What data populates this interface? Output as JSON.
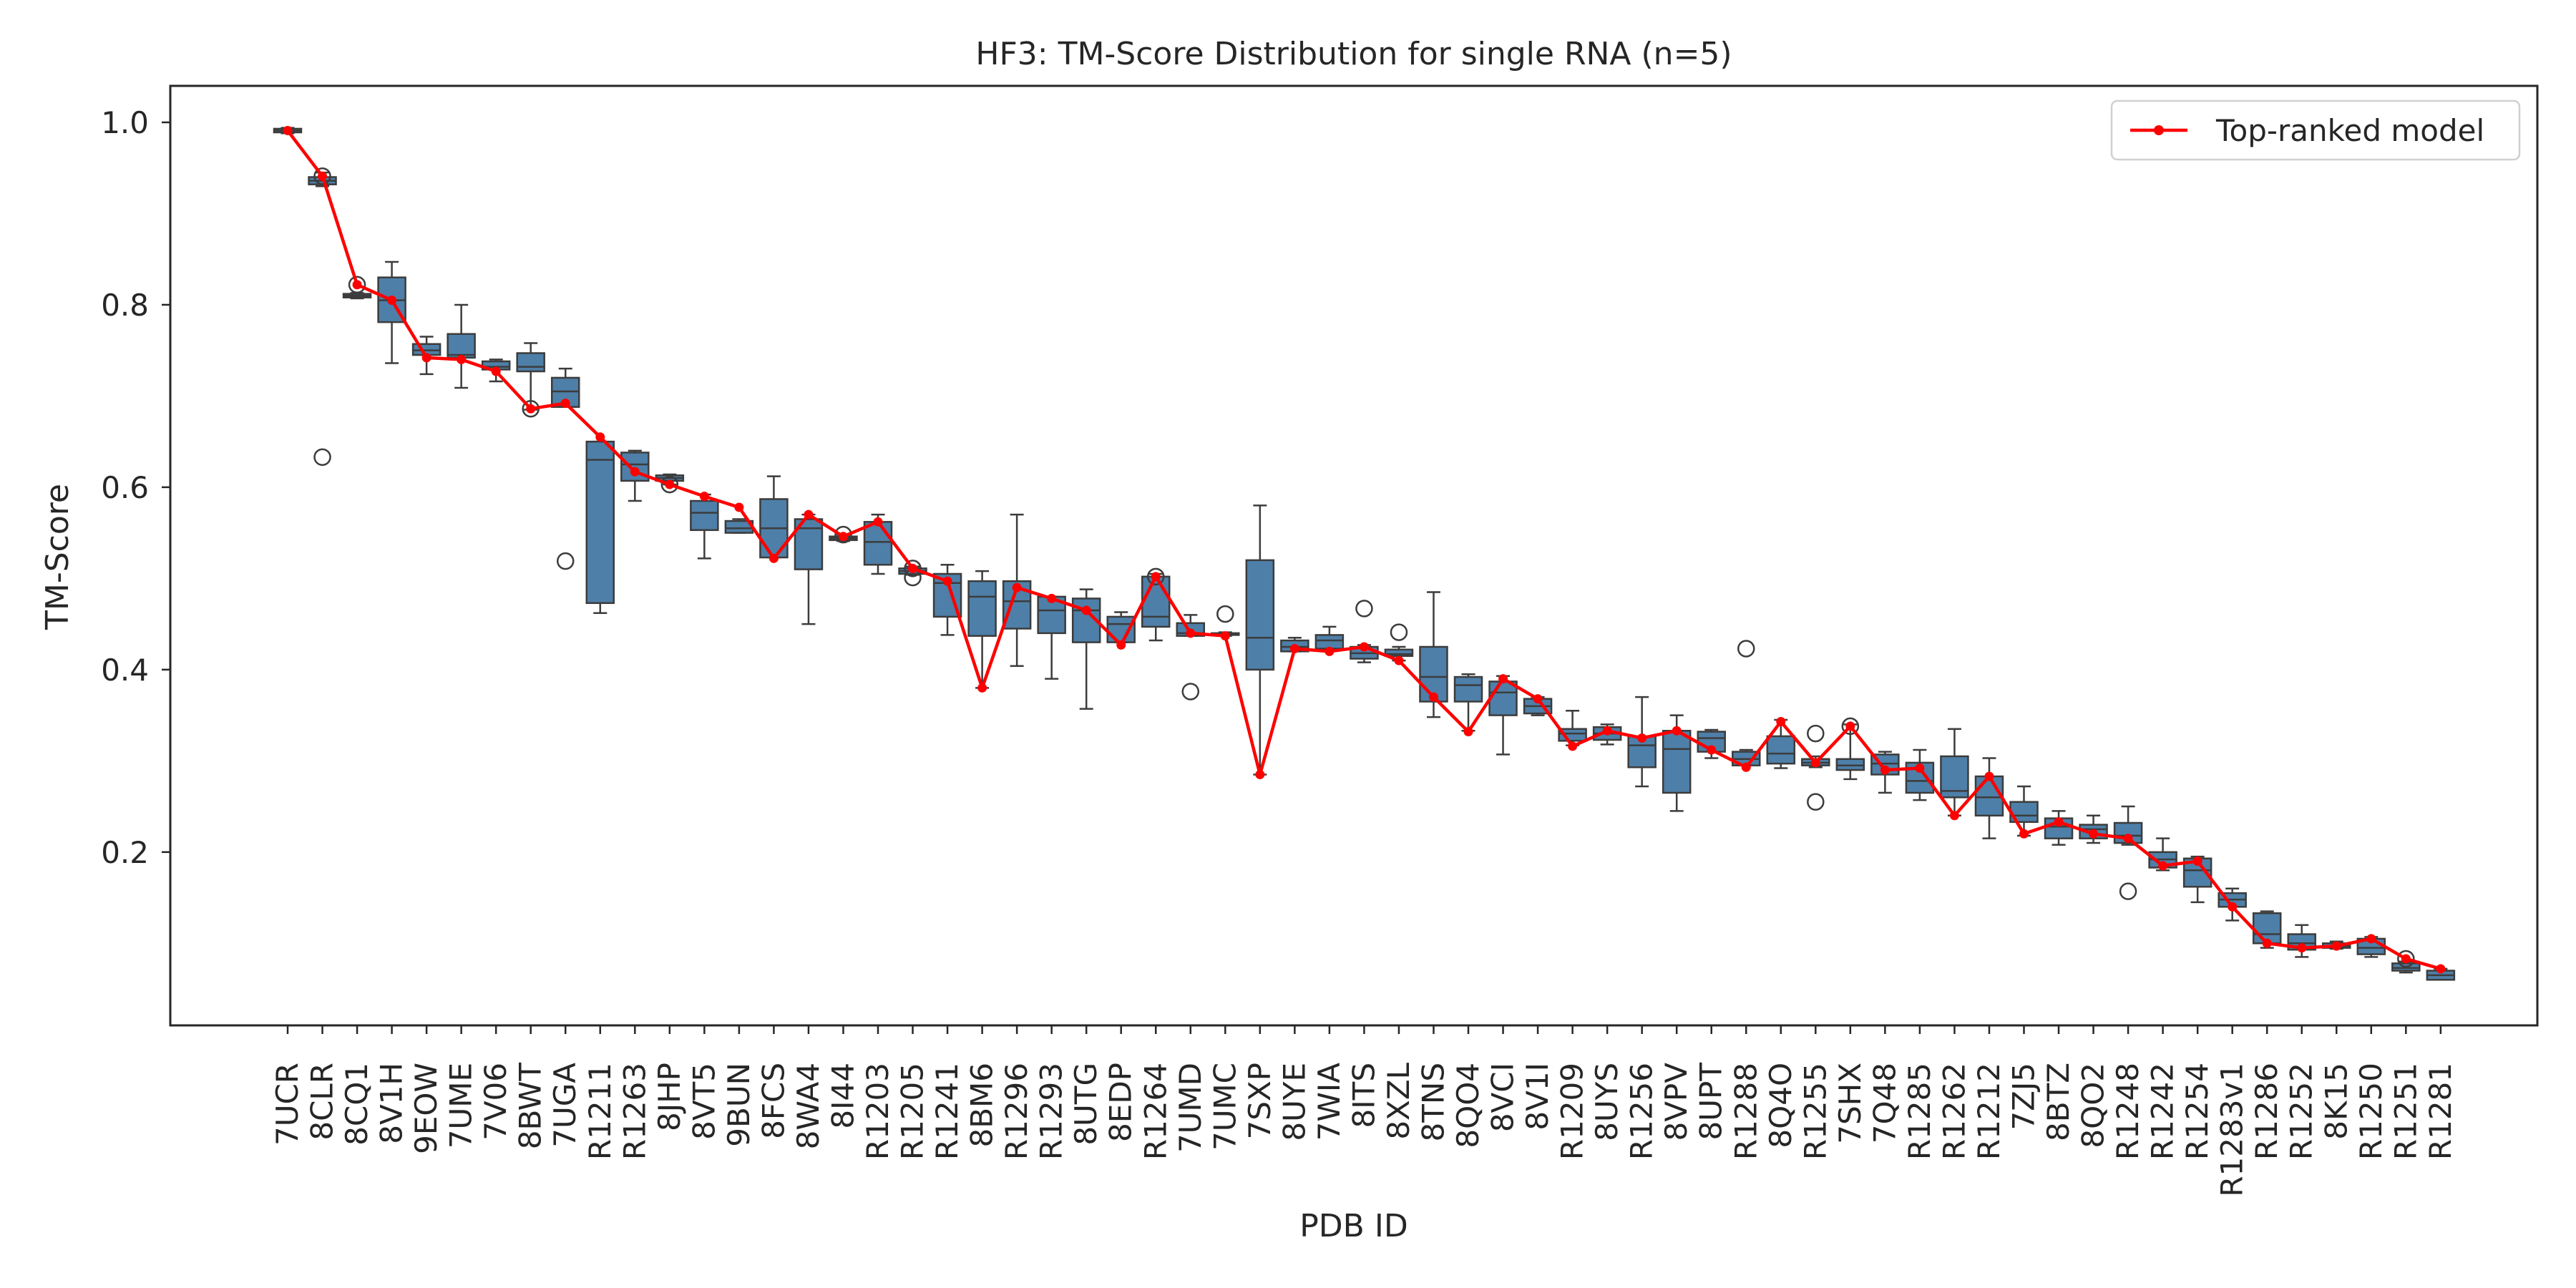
{
  "chart_data": {
    "type": "box",
    "title": "HF3: TM-Score Distribution for single RNA (n=5)",
    "xlabel": "PDB ID",
    "ylabel": "TM-Score",
    "ylim": [
      0.01,
      1.04
    ],
    "yticks": [
      "0.2",
      "0.4",
      "0.6",
      "0.8",
      "1.0"
    ],
    "grid": false,
    "legend": {
      "position": "top-right",
      "entries": [
        {
          "label": "Top-ranked model",
          "color": "#ff0000"
        }
      ]
    },
    "box_color": "#4e7fa8",
    "categories": [
      "7UCR",
      "8CLR",
      "8CQ1",
      "8V1H",
      "9EOW",
      "7UME",
      "7V06",
      "8BWT",
      "7UGA",
      "R1211",
      "R1263",
      "8JHP",
      "8VT5",
      "9BUN",
      "8FCS",
      "8WA4",
      "8I44",
      "R1203",
      "R1205",
      "R1241",
      "8BM6",
      "R1296",
      "R1293",
      "8UTG",
      "8EDP",
      "R1264",
      "7UMD",
      "7UMC",
      "7SXP",
      "8UYE",
      "7WIA",
      "8ITS",
      "8XZL",
      "8TNS",
      "8QO4",
      "8VCI",
      "8V1I",
      "R1209",
      "8UYS",
      "R1256",
      "8VPV",
      "8UPT",
      "R1288",
      "8Q4O",
      "R1255",
      "7SHX",
      "7Q48",
      "R1285",
      "R1262",
      "R1212",
      "7ZJ5",
      "8BTZ",
      "8QO2",
      "R1248",
      "R1242",
      "R1254",
      "R1283v1",
      "R1286",
      "R1252",
      "8K15",
      "R1250",
      "R1251",
      "R1281"
    ],
    "boxes": [
      {
        "q1": 0.989,
        "median": 0.991,
        "q3": 0.993,
        "wlo": 0.988,
        "whi": 0.994,
        "outliers": []
      },
      {
        "q1": 0.932,
        "median": 0.936,
        "q3": 0.94,
        "wlo": 0.93,
        "whi": 0.945,
        "outliers": [
          0.941,
          0.633
        ]
      },
      {
        "q1": 0.808,
        "median": 0.81,
        "q3": 0.812,
        "wlo": 0.807,
        "whi": 0.813,
        "outliers": [
          0.822
        ]
      },
      {
        "q1": 0.781,
        "median": 0.805,
        "q3": 0.83,
        "wlo": 0.736,
        "whi": 0.847,
        "outliers": []
      },
      {
        "q1": 0.745,
        "median": 0.75,
        "q3": 0.757,
        "wlo": 0.724,
        "whi": 0.765,
        "outliers": []
      },
      {
        "q1": 0.742,
        "median": 0.745,
        "q3": 0.768,
        "wlo": 0.709,
        "whi": 0.8,
        "outliers": []
      },
      {
        "q1": 0.729,
        "median": 0.732,
        "q3": 0.738,
        "wlo": 0.716,
        "whi": 0.74,
        "outliers": []
      },
      {
        "q1": 0.727,
        "median": 0.732,
        "q3": 0.747,
        "wlo": 0.685,
        "whi": 0.758,
        "outliers": [
          0.686
        ]
      },
      {
        "q1": 0.688,
        "median": 0.705,
        "q3": 0.72,
        "wlo": 0.688,
        "whi": 0.73,
        "outliers": [
          0.519
        ]
      },
      {
        "q1": 0.473,
        "median": 0.63,
        "q3": 0.65,
        "wlo": 0.462,
        "whi": 0.65,
        "outliers": []
      },
      {
        "q1": 0.607,
        "median": 0.625,
        "q3": 0.638,
        "wlo": 0.585,
        "whi": 0.64,
        "outliers": []
      },
      {
        "q1": 0.607,
        "median": 0.61,
        "q3": 0.613,
        "wlo": 0.603,
        "whi": 0.614,
        "outliers": [
          0.603
        ]
      },
      {
        "q1": 0.553,
        "median": 0.572,
        "q3": 0.585,
        "wlo": 0.522,
        "whi": 0.592,
        "outliers": []
      },
      {
        "q1": 0.55,
        "median": 0.555,
        "q3": 0.563,
        "wlo": 0.55,
        "whi": 0.565,
        "outliers": []
      },
      {
        "q1": 0.523,
        "median": 0.555,
        "q3": 0.587,
        "wlo": 0.523,
        "whi": 0.612,
        "outliers": []
      },
      {
        "q1": 0.51,
        "median": 0.555,
        "q3": 0.565,
        "wlo": 0.45,
        "whi": 0.57,
        "outliers": []
      },
      {
        "q1": 0.542,
        "median": 0.544,
        "q3": 0.546,
        "wlo": 0.541,
        "whi": 0.548,
        "outliers": [
          0.548
        ]
      },
      {
        "q1": 0.515,
        "median": 0.54,
        "q3": 0.562,
        "wlo": 0.505,
        "whi": 0.57,
        "outliers": []
      },
      {
        "q1": 0.505,
        "median": 0.508,
        "q3": 0.511,
        "wlo": 0.504,
        "whi": 0.513,
        "outliers": [
          0.501,
          0.511
        ]
      },
      {
        "q1": 0.458,
        "median": 0.495,
        "q3": 0.505,
        "wlo": 0.438,
        "whi": 0.515,
        "outliers": []
      },
      {
        "q1": 0.437,
        "median": 0.48,
        "q3": 0.497,
        "wlo": 0.38,
        "whi": 0.508,
        "outliers": []
      },
      {
        "q1": 0.445,
        "median": 0.475,
        "q3": 0.497,
        "wlo": 0.404,
        "whi": 0.57,
        "outliers": []
      },
      {
        "q1": 0.44,
        "median": 0.465,
        "q3": 0.48,
        "wlo": 0.39,
        "whi": 0.48,
        "outliers": []
      },
      {
        "q1": 0.43,
        "median": 0.465,
        "q3": 0.478,
        "wlo": 0.357,
        "whi": 0.488,
        "outliers": []
      },
      {
        "q1": 0.43,
        "median": 0.45,
        "q3": 0.458,
        "wlo": 0.43,
        "whi": 0.463,
        "outliers": []
      },
      {
        "q1": 0.447,
        "median": 0.458,
        "q3": 0.502,
        "wlo": 0.432,
        "whi": 0.505,
        "outliers": [
          0.502
        ]
      },
      {
        "q1": 0.437,
        "median": 0.44,
        "q3": 0.451,
        "wlo": 0.437,
        "whi": 0.46,
        "outliers": [
          0.376
        ]
      },
      {
        "q1": 0.438,
        "median": 0.439,
        "q3": 0.44,
        "wlo": 0.437,
        "whi": 0.441,
        "outliers": [
          0.461
        ]
      },
      {
        "q1": 0.4,
        "median": 0.435,
        "q3": 0.52,
        "wlo": 0.285,
        "whi": 0.58,
        "outliers": []
      },
      {
        "q1": 0.42,
        "median": 0.425,
        "q3": 0.432,
        "wlo": 0.42,
        "whi": 0.435,
        "outliers": []
      },
      {
        "q1": 0.423,
        "median": 0.432,
        "q3": 0.438,
        "wlo": 0.423,
        "whi": 0.447,
        "outliers": []
      },
      {
        "q1": 0.412,
        "median": 0.418,
        "q3": 0.425,
        "wlo": 0.408,
        "whi": 0.427,
        "outliers": [
          0.467
        ]
      },
      {
        "q1": 0.415,
        "median": 0.417,
        "q3": 0.422,
        "wlo": 0.41,
        "whi": 0.425,
        "outliers": [
          0.441
        ]
      },
      {
        "q1": 0.365,
        "median": 0.392,
        "q3": 0.425,
        "wlo": 0.348,
        "whi": 0.485,
        "outliers": []
      },
      {
        "q1": 0.365,
        "median": 0.383,
        "q3": 0.392,
        "wlo": 0.333,
        "whi": 0.395,
        "outliers": []
      },
      {
        "q1": 0.35,
        "median": 0.375,
        "q3": 0.387,
        "wlo": 0.307,
        "whi": 0.393,
        "outliers": []
      },
      {
        "q1": 0.352,
        "median": 0.36,
        "q3": 0.368,
        "wlo": 0.35,
        "whi": 0.37,
        "outliers": []
      },
      {
        "q1": 0.322,
        "median": 0.33,
        "q3": 0.335,
        "wlo": 0.317,
        "whi": 0.355,
        "outliers": []
      },
      {
        "q1": 0.323,
        "median": 0.33,
        "q3": 0.337,
        "wlo": 0.318,
        "whi": 0.34,
        "outliers": []
      },
      {
        "q1": 0.293,
        "median": 0.317,
        "q3": 0.327,
        "wlo": 0.272,
        "whi": 0.37,
        "outliers": []
      },
      {
        "q1": 0.265,
        "median": 0.313,
        "q3": 0.333,
        "wlo": 0.245,
        "whi": 0.35,
        "outliers": []
      },
      {
        "q1": 0.31,
        "median": 0.325,
        "q3": 0.332,
        "wlo": 0.303,
        "whi": 0.334,
        "outliers": []
      },
      {
        "q1": 0.295,
        "median": 0.302,
        "q3": 0.31,
        "wlo": 0.295,
        "whi": 0.312,
        "outliers": [
          0.423
        ]
      },
      {
        "q1": 0.297,
        "median": 0.308,
        "q3": 0.327,
        "wlo": 0.292,
        "whi": 0.345,
        "outliers": []
      },
      {
        "q1": 0.295,
        "median": 0.298,
        "q3": 0.302,
        "wlo": 0.293,
        "whi": 0.305,
        "outliers": [
          0.33,
          0.255
        ]
      },
      {
        "q1": 0.29,
        "median": 0.295,
        "q3": 0.302,
        "wlo": 0.28,
        "whi": 0.34,
        "outliers": [
          0.338
        ]
      },
      {
        "q1": 0.285,
        "median": 0.297,
        "q3": 0.307,
        "wlo": 0.265,
        "whi": 0.31,
        "outliers": []
      },
      {
        "q1": 0.265,
        "median": 0.278,
        "q3": 0.298,
        "wlo": 0.257,
        "whi": 0.312,
        "outliers": []
      },
      {
        "q1": 0.26,
        "median": 0.267,
        "q3": 0.305,
        "wlo": 0.24,
        "whi": 0.335,
        "outliers": []
      },
      {
        "q1": 0.24,
        "median": 0.26,
        "q3": 0.283,
        "wlo": 0.215,
        "whi": 0.303,
        "outliers": []
      },
      {
        "q1": 0.233,
        "median": 0.24,
        "q3": 0.255,
        "wlo": 0.218,
        "whi": 0.272,
        "outliers": []
      },
      {
        "q1": 0.215,
        "median": 0.228,
        "q3": 0.237,
        "wlo": 0.208,
        "whi": 0.245,
        "outliers": []
      },
      {
        "q1": 0.215,
        "median": 0.225,
        "q3": 0.23,
        "wlo": 0.21,
        "whi": 0.24,
        "outliers": []
      },
      {
        "q1": 0.21,
        "median": 0.218,
        "q3": 0.232,
        "wlo": 0.208,
        "whi": 0.25,
        "outliers": [
          0.157
        ]
      },
      {
        "q1": 0.183,
        "median": 0.192,
        "q3": 0.2,
        "wlo": 0.18,
        "whi": 0.215,
        "outliers": []
      },
      {
        "q1": 0.162,
        "median": 0.18,
        "q3": 0.193,
        "wlo": 0.145,
        "whi": 0.195,
        "outliers": []
      },
      {
        "q1": 0.14,
        "median": 0.148,
        "q3": 0.155,
        "wlo": 0.125,
        "whi": 0.16,
        "outliers": []
      },
      {
        "q1": 0.1,
        "median": 0.11,
        "q3": 0.133,
        "wlo": 0.095,
        "whi": 0.135,
        "outliers": []
      },
      {
        "q1": 0.093,
        "median": 0.1,
        "q3": 0.11,
        "wlo": 0.085,
        "whi": 0.12,
        "outliers": []
      },
      {
        "q1": 0.095,
        "median": 0.097,
        "q3": 0.1,
        "wlo": 0.094,
        "whi": 0.102,
        "outliers": []
      },
      {
        "q1": 0.088,
        "median": 0.095,
        "q3": 0.105,
        "wlo": 0.085,
        "whi": 0.107,
        "outliers": []
      },
      {
        "q1": 0.07,
        "median": 0.073,
        "q3": 0.078,
        "wlo": 0.068,
        "whi": 0.08,
        "outliers": [
          0.083
        ]
      },
      {
        "q1": 0.06,
        "median": 0.065,
        "q3": 0.07,
        "wlo": 0.06,
        "whi": 0.072,
        "outliers": []
      }
    ],
    "series": [
      {
        "name": "Top-ranked model",
        "color": "#ff0000",
        "values": [
          0.991,
          0.941,
          0.822,
          0.805,
          0.742,
          0.74,
          0.727,
          0.686,
          0.692,
          0.655,
          0.617,
          0.603,
          0.59,
          0.578,
          0.522,
          0.57,
          0.546,
          0.562,
          0.511,
          0.497,
          0.38,
          0.49,
          0.478,
          0.465,
          0.427,
          0.502,
          0.44,
          0.437,
          0.285,
          0.423,
          0.42,
          0.425,
          0.41,
          0.37,
          0.332,
          0.39,
          0.368,
          0.316,
          0.333,
          0.325,
          0.333,
          0.312,
          0.293,
          0.343,
          0.298,
          0.338,
          0.29,
          0.292,
          0.24,
          0.283,
          0.22,
          0.233,
          0.22,
          0.215,
          0.185,
          0.19,
          0.14,
          0.1,
          0.095,
          0.097,
          0.105,
          0.083,
          0.072
        ]
      }
    ]
  }
}
